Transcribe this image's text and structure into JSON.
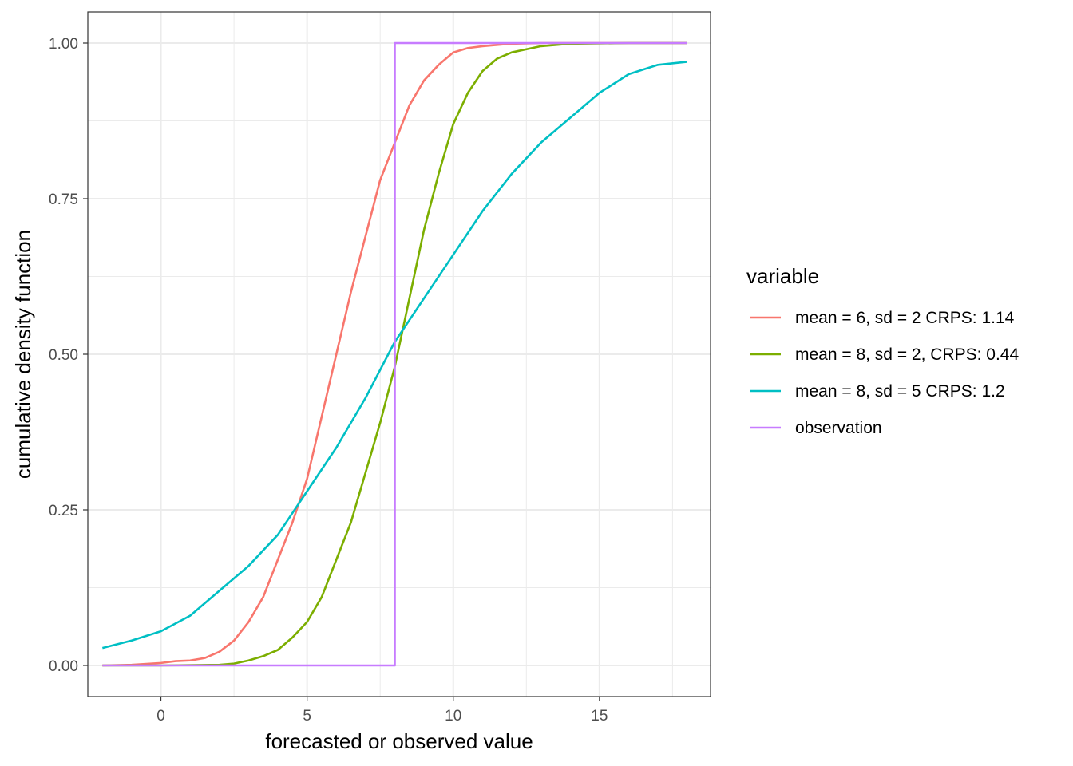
{
  "chart_data": {
    "type": "line",
    "title": "",
    "xlabel": "forecasted or observed value",
    "ylabel": "cumulative density function",
    "xlim": [
      -2.5,
      18.8
    ],
    "ylim": [
      -0.05,
      1.05
    ],
    "x_ticks": [
      0,
      5,
      10,
      15
    ],
    "y_ticks": [
      0.0,
      0.25,
      0.5,
      0.75,
      1.0
    ],
    "x_tick_labels": [
      "0",
      "5",
      "10",
      "15"
    ],
    "y_tick_labels": [
      "0.00",
      "0.25",
      "0.50",
      "0.75",
      "1.00"
    ],
    "grid": true,
    "legend": {
      "title": "variable",
      "placement": "right"
    },
    "series": [
      {
        "name": "mean = 6, sd = 2 CRPS: 1.14",
        "color": "#F8766D",
        "x": [
          -2,
          -1,
          0,
          0.5,
          1,
          1.5,
          2,
          2.5,
          3,
          3.5,
          4,
          4.5,
          5,
          5.5,
          6,
          6.5,
          7,
          7.5,
          8,
          8.5,
          9,
          9.5,
          10,
          10.5,
          11,
          11.5,
          12,
          13,
          14,
          16,
          18
        ],
        "y": [
          0.0,
          0.001,
          0.004,
          0.007,
          0.008,
          0.012,
          0.022,
          0.04,
          0.07,
          0.11,
          0.17,
          0.23,
          0.3,
          0.4,
          0.5,
          0.6,
          0.69,
          0.78,
          0.84,
          0.9,
          0.94,
          0.965,
          0.985,
          0.992,
          0.995,
          0.997,
          0.999,
          1.0,
          1.0,
          1.0,
          1.0
        ]
      },
      {
        "name": "mean = 8, sd = 2, CRPS: 0.44",
        "color": "#7CAE00",
        "x": [
          -2,
          0,
          2,
          2.5,
          3,
          3.5,
          4,
          4.5,
          5,
          5.5,
          6,
          6.5,
          7,
          7.5,
          8,
          8.5,
          9,
          9.5,
          10,
          10.5,
          11,
          11.5,
          12,
          13,
          14,
          16,
          18
        ],
        "y": [
          0.0,
          0.0,
          0.001,
          0.003,
          0.008,
          0.015,
          0.025,
          0.045,
          0.07,
          0.11,
          0.17,
          0.23,
          0.31,
          0.39,
          0.48,
          0.59,
          0.7,
          0.79,
          0.87,
          0.92,
          0.955,
          0.975,
          0.985,
          0.995,
          0.999,
          1.0,
          1.0
        ]
      },
      {
        "name": "mean = 8, sd = 5 CRPS: 1.2",
        "color": "#00BFC4",
        "x": [
          -2,
          -1,
          0,
          1,
          2,
          3,
          4,
          5,
          6,
          7,
          8,
          9,
          10,
          11,
          12,
          13,
          14,
          15,
          16,
          17,
          18
        ],
        "y": [
          0.028,
          0.04,
          0.055,
          0.08,
          0.12,
          0.16,
          0.21,
          0.28,
          0.35,
          0.43,
          0.52,
          0.59,
          0.66,
          0.73,
          0.79,
          0.84,
          0.88,
          0.92,
          0.95,
          0.965,
          0.97
        ]
      },
      {
        "name": "observation",
        "color": "#C77CFF",
        "x": [
          -2,
          8,
          8,
          18
        ],
        "y": [
          0.0,
          0.0,
          1.0,
          1.0
        ]
      }
    ]
  }
}
